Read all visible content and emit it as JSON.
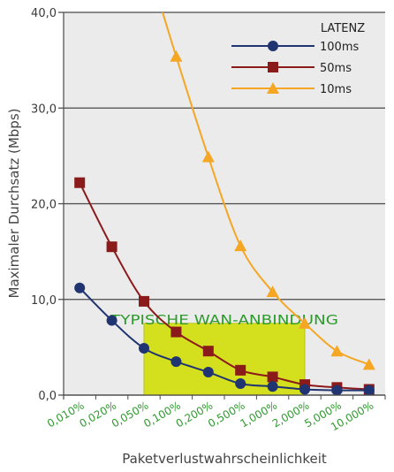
{
  "chart_data": {
    "type": "line",
    "title": "",
    "xlabel": "Paketverlustwahrscheinlichkeit",
    "ylabel": "Maximaler Durchsatz (Mbps)",
    "ylim": [
      0,
      40
    ],
    "yticks": [
      "0,0",
      "10,0",
      "20,0",
      "30,0",
      "40,0"
    ],
    "categories": [
      "0,010%",
      "0,020%",
      "0,050%",
      "0,100%",
      "0,200%",
      "0,500%",
      "1,000%",
      "2,000%",
      "5,000%",
      "10,000%"
    ],
    "grid": true,
    "legend_title": "LATENZ",
    "legend_position": "top-right",
    "highlight": {
      "label": "TYPISCHE WAN-ANBINDUNG",
      "x_from": 2.5,
      "x_to": 7.5,
      "y_from": 0,
      "y_to": 7.5,
      "color": "#d4e01e"
    },
    "series": [
      {
        "name": "100ms",
        "color": "#1f3470",
        "marker": "circle",
        "x": [
          0.5,
          1.5,
          2.5,
          3.5,
          4.5,
          5.5,
          6.5,
          7.5,
          8.5,
          9.5
        ],
        "values": [
          11.2,
          7.8,
          4.9,
          3.5,
          2.4,
          1.2,
          0.9,
          0.6,
          0.5,
          0.5
        ]
      },
      {
        "name": "50ms",
        "color": "#8b1a1a",
        "marker": "square",
        "x": [
          0.5,
          1.5,
          2.5,
          3.5,
          4.5,
          5.5,
          6.5,
          7.5,
          8.5,
          9.5
        ],
        "values": [
          22.2,
          15.5,
          9.8,
          6.6,
          4.6,
          2.6,
          1.9,
          1.1,
          0.8,
          0.6
        ]
      },
      {
        "name": "10ms",
        "color": "#f5a623",
        "marker": "triangle",
        "x": [
          2.9,
          3.5,
          4.5,
          5.5,
          6.5,
          7.5,
          8.5,
          9.5
        ],
        "values": [
          42,
          35.4,
          24.9,
          15.6,
          10.8,
          7.5,
          4.6,
          3.2
        ]
      }
    ]
  }
}
